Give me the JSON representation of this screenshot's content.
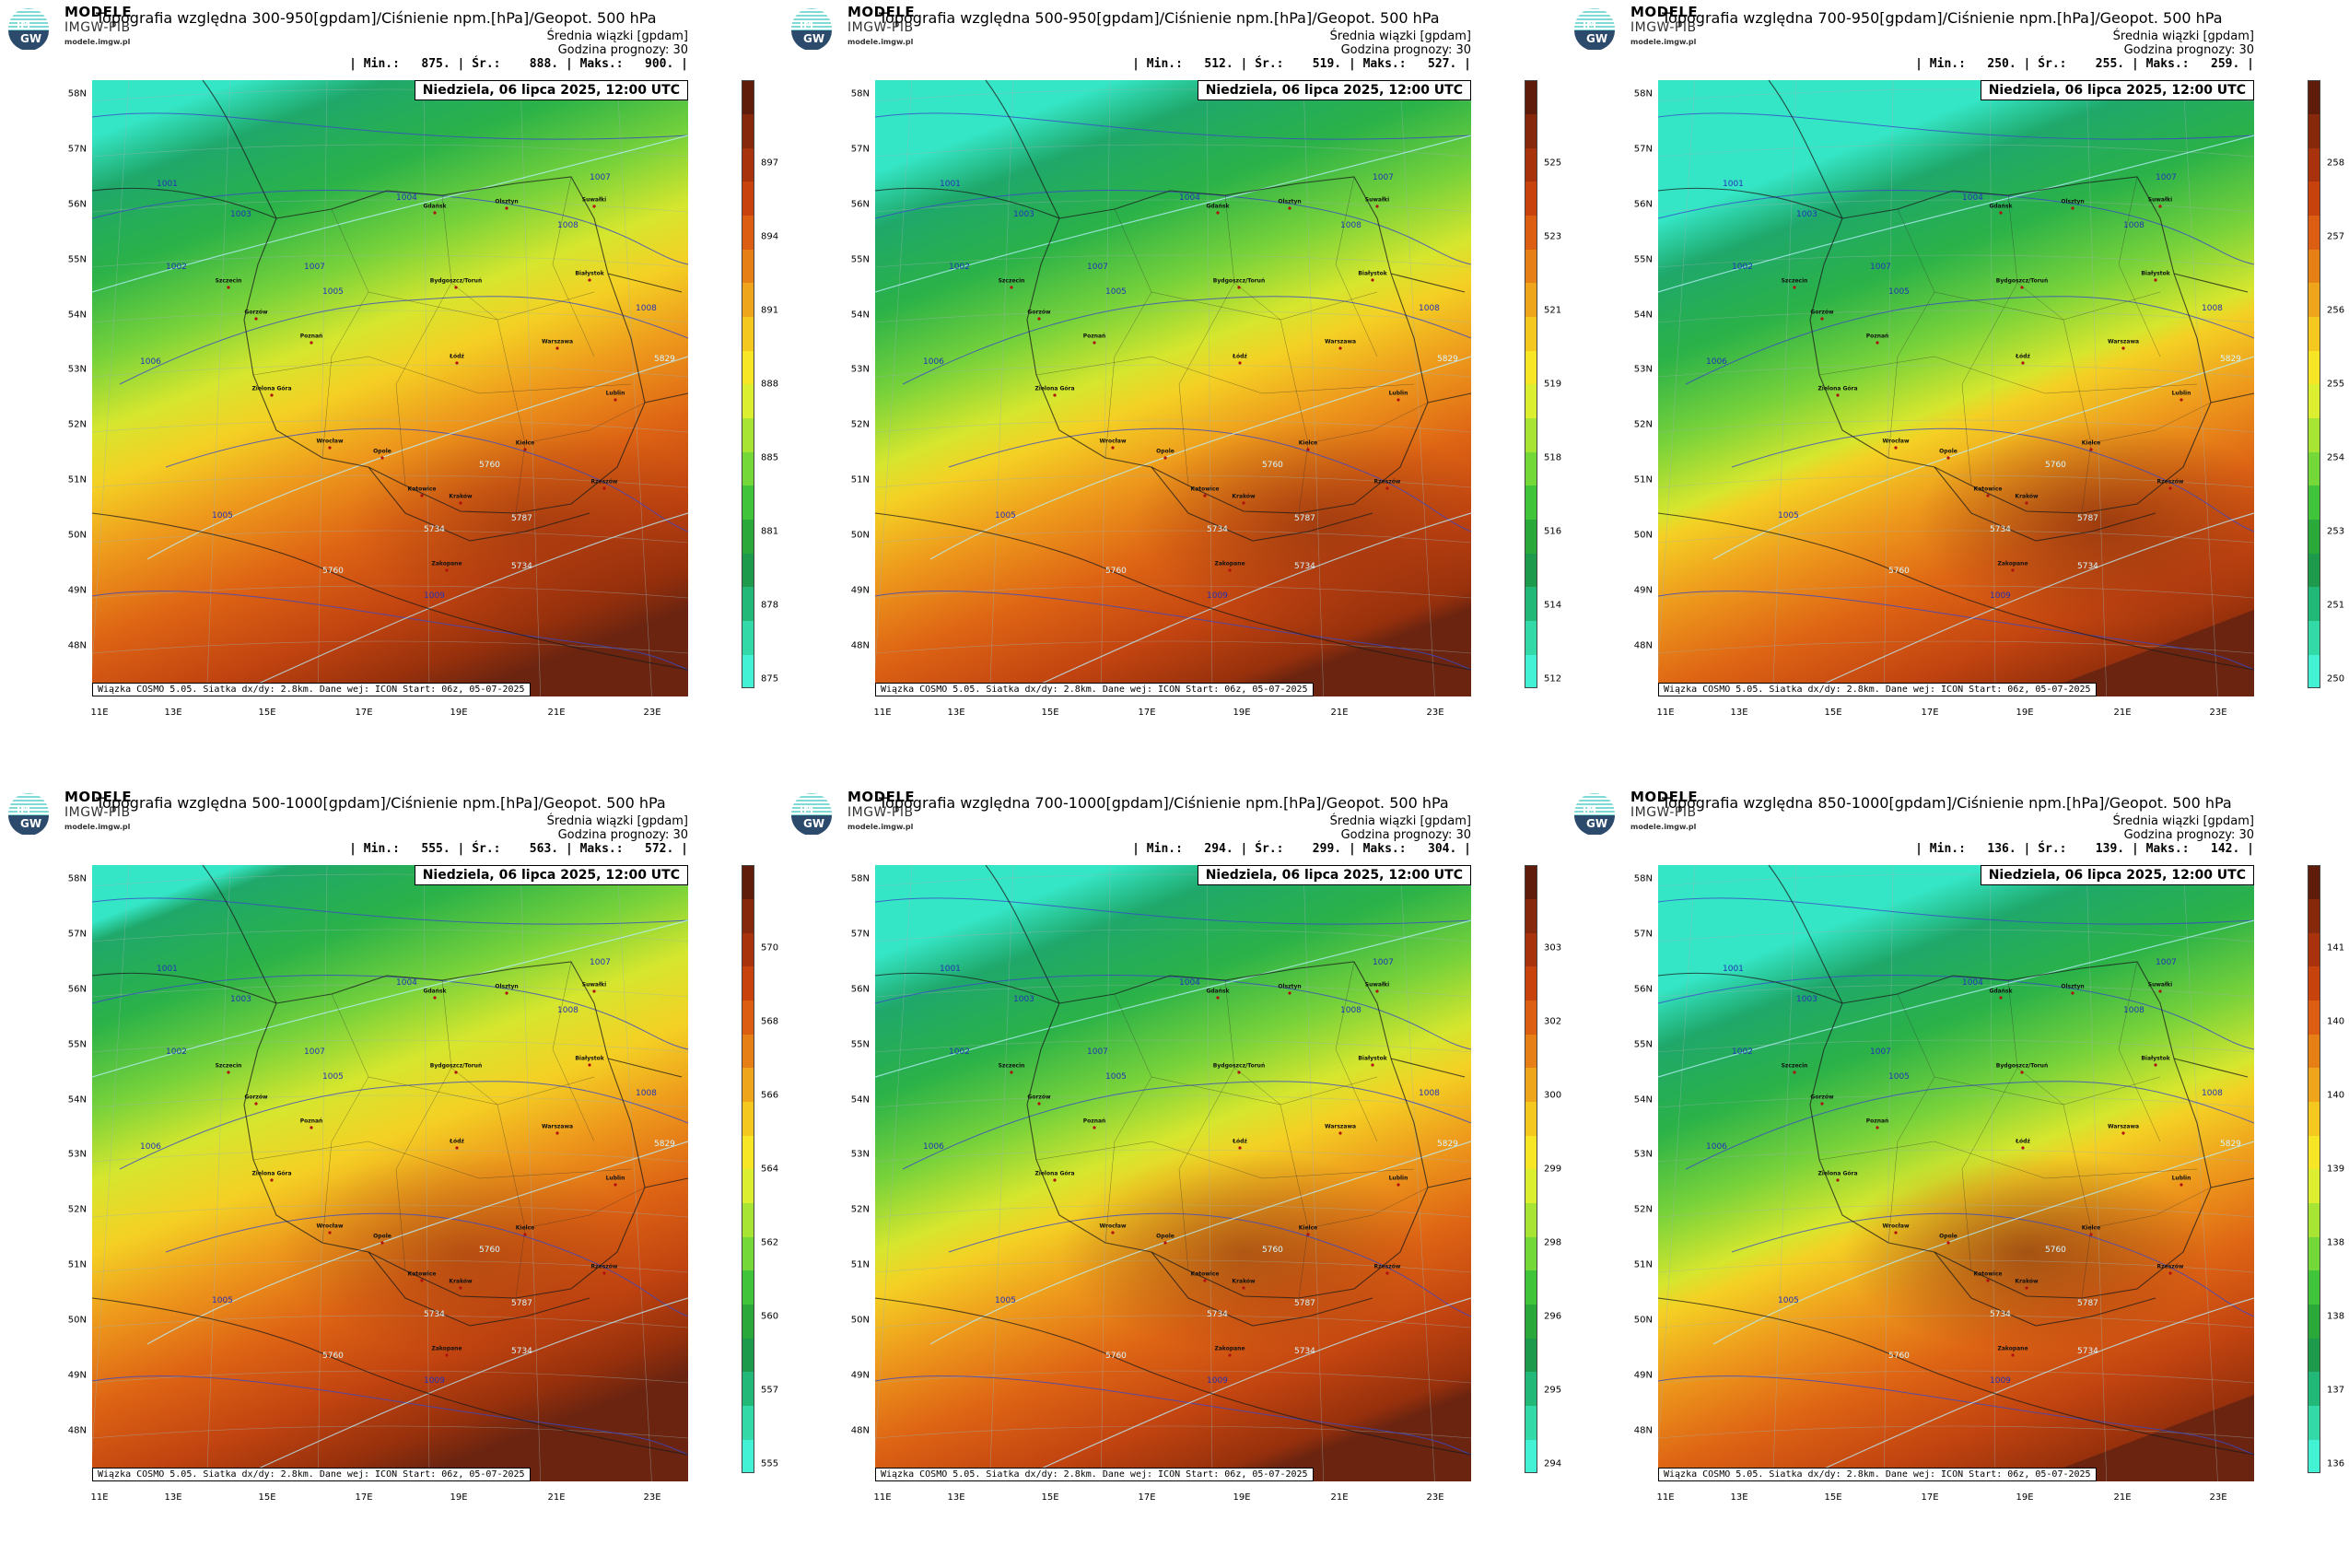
{
  "header": {
    "brand_line1": "MODELE",
    "brand_line2": "IMGW-PIB",
    "brand_site": "modele.imgw.pl",
    "subtitle_ensemble": "Średnia wiązki [gpdam]",
    "forecast_hour": "Godzina prognozy: 30",
    "date": "Niedziela, 06 lipca 2025, 12:00 UTC",
    "credit": "Wiązka COSMO 5.05. Siatka dx/dy: 2.8km. Dane wej: ICON Start: 06z, 05-07-2025"
  },
  "axes": {
    "lat_labels": [
      "58N",
      "57N",
      "56N",
      "55N",
      "54N",
      "53N",
      "52N",
      "51N",
      "50N",
      "49N",
      "48N"
    ],
    "lon_labels": [
      "11E",
      "13E",
      "15E",
      "17E",
      "19E",
      "21E",
      "23E"
    ]
  },
  "cities": [
    "Gdańsk",
    "Olsztyn",
    "Suwałki",
    "Szczecin",
    "Białystok",
    "Bydgoszcz/Toruń",
    "Gorzów",
    "Poznań",
    "Warszawa",
    "Łódź",
    "Zielona Góra",
    "Lublin",
    "Wrocław",
    "Kielce",
    "Opole",
    "Rzeszów",
    "Katowice",
    "Kraków",
    "Zakopane"
  ],
  "pressure_labels": [
    "1001",
    "1002",
    "1003",
    "1004",
    "1006",
    "1007",
    "1008",
    "1009",
    "1005",
    "1005",
    "1007",
    "1008"
  ],
  "geopot_labels": [
    "5734",
    "5787",
    "5760",
    "5829",
    "5734",
    "5760"
  ],
  "panels": [
    {
      "title": "Topografia względna 300-950[gpdam]/Ciśnienie npm.[hPa]/Geopot. 500 hPa",
      "stats": "| Min.:   875. | Śr.:    888. | Maks.:   900. |",
      "legend_ticks": [
        "875",
        "878",
        "881",
        "885",
        "888",
        "891",
        "894",
        "897"
      ],
      "colors": {
        "low": "#33f0d0",
        "high": "#4a1a10"
      },
      "gradient_offset": 0.0
    },
    {
      "title": "Topografia względna 500-950[gpdam]/Ciśnienie npm.[hPa]/Geopot. 500 hPa",
      "stats": "| Min.:   512. | Śr.:    519. | Maks.:   527. |",
      "legend_ticks": [
        "512",
        "514",
        "516",
        "518",
        "519",
        "521",
        "523",
        "525"
      ],
      "colors": {
        "low": "#33f0d0",
        "high": "#4a1a10"
      },
      "gradient_offset": 0.05
    },
    {
      "title": "Topografia względna 700-950[gpdam]/Ciśnienie npm.[hPa]/Geopot. 500 hPa",
      "stats": "| Min.:   250. | Śr.:    255. | Maks.:   259. |",
      "legend_ticks": [
        "250",
        "251",
        "253",
        "254",
        "255",
        "256",
        "257",
        "258"
      ],
      "colors": {
        "low": "#33f0d0",
        "high": "#4a1a10"
      },
      "gradient_offset": 0.12
    },
    {
      "title": "Topografia względna 500-1000[gpdam]/Ciśnienie npm.[hPa]/Geopot. 500 hPa",
      "stats": "| Min.:   555. | Śr.:    563. | Maks.:   572. |",
      "legend_ticks": [
        "555",
        "557",
        "560",
        "562",
        "564",
        "566",
        "568",
        "570"
      ],
      "colors": {
        "low": "#33f0d0",
        "high": "#4a1a10"
      },
      "gradient_offset": -0.05
    },
    {
      "title": "Topografia względna 700-1000[gpdam]/Ciśnienie npm.[hPa]/Geopot. 500 hPa",
      "stats": "| Min.:   294. | Śr.:    299. | Maks.:   304. |",
      "legend_ticks": [
        "294",
        "295",
        "296",
        "298",
        "299",
        "300",
        "302",
        "303"
      ],
      "colors": {
        "low": "#33f0d0",
        "high": "#4a1a10"
      },
      "gradient_offset": 0.05
    },
    {
      "title": "Topografia względna 850-1000[gpdam]/Ciśnienie npm.[hPa]/Geopot. 500 hPa",
      "stats": "| Min.:   136. | Śr.:    139. | Maks.:   142. |",
      "legend_ticks": [
        "136",
        "137",
        "138",
        "138",
        "139",
        "140",
        "140",
        "141"
      ],
      "colors": {
        "low": "#33f0d0",
        "high": "#4a1a10"
      },
      "gradient_offset": 0.1
    }
  ]
}
